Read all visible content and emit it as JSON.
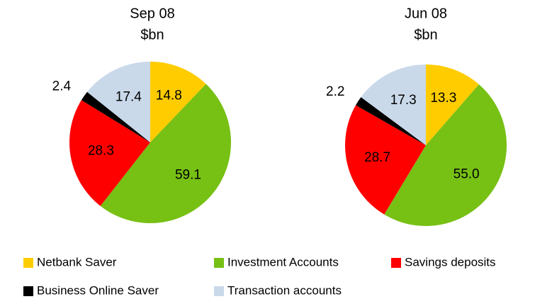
{
  "chart_data": [
    {
      "type": "pie",
      "title": "Sep 08",
      "subtitle": "$bn",
      "categories": [
        "Netbank Saver",
        "Investment Accounts",
        "Savings deposits",
        "Business Online Saver",
        "Transaction accounts"
      ],
      "values": [
        14.8,
        59.1,
        28.3,
        2.4,
        17.4
      ],
      "value_labels": [
        "14.8",
        "59.1",
        "28.3",
        "2.4",
        "17.4"
      ],
      "colors": [
        "#ffcc00",
        "#77c014",
        "#ff0000",
        "#000000",
        "#c9d9ea"
      ]
    },
    {
      "type": "pie",
      "title": "Jun 08",
      "subtitle": "$bn",
      "categories": [
        "Netbank Saver",
        "Investment Accounts",
        "Savings deposits",
        "Business Online Saver",
        "Transaction accounts"
      ],
      "values": [
        13.3,
        55.0,
        28.7,
        2.2,
        17.3
      ],
      "value_labels": [
        "13.3",
        "55.0",
        "28.7",
        "2.2",
        "17.3"
      ],
      "colors": [
        "#ffcc00",
        "#77c014",
        "#ff0000",
        "#000000",
        "#c9d9ea"
      ]
    }
  ]
}
